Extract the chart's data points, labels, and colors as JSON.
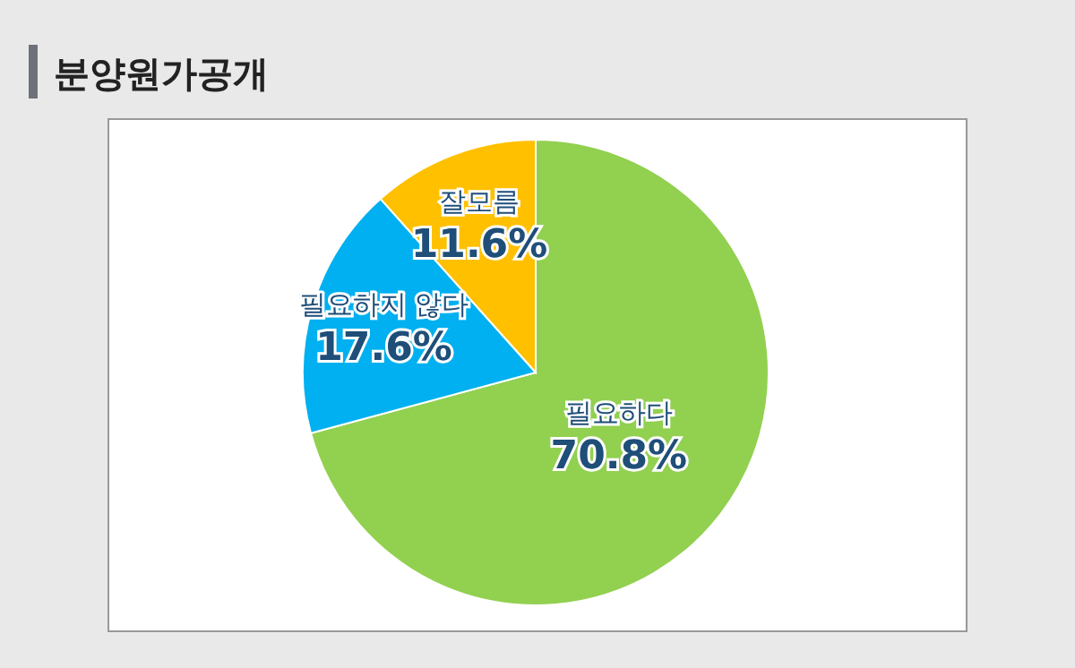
{
  "chart_data": {
    "type": "pie",
    "title": "분양원가공개",
    "categories": [
      "필요하다",
      "필요하지 않다",
      "잘모름"
    ],
    "values": [
      70.8,
      17.6,
      11.6
    ],
    "colors": [
      "#92d050",
      "#00b0f0",
      "#ffc000"
    ],
    "value_labels": [
      "70.8%",
      "17.6%",
      "11.6%"
    ]
  }
}
